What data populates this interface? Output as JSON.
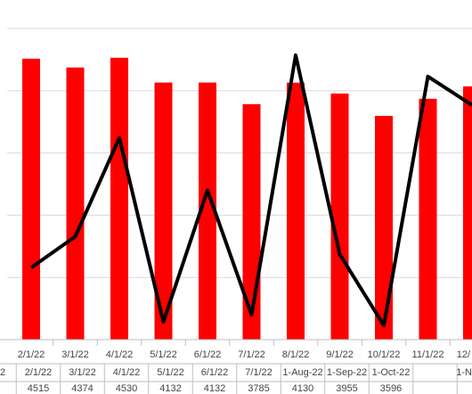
{
  "chart_data": {
    "type": "bar-line",
    "categories": [
      "2/1/22",
      "3/1/22",
      "4/1/22",
      "5/1/22",
      "6/1/22",
      "7/1/22",
      "8/1/22",
      "9/1/22",
      "10/1/22",
      "11/1/22",
      "12/"
    ],
    "series": [
      {
        "type": "bar",
        "color": "#ff0000",
        "values": [
          4515,
          4374,
          4530,
          4132,
          4132,
          3785,
          4130,
          3955,
          3596,
          3871,
          4071
        ]
      },
      {
        "type": "line",
        "color": "#000000",
        "values": [
          1157,
          1657,
          3243,
          286,
          2400,
          400,
          4571,
          1371,
          229,
          4229,
          3771
        ]
      }
    ],
    "ylim": [
      0,
      5000
    ],
    "yticks": [
      0,
      1000,
      2000,
      3000,
      4000,
      5000
    ],
    "grid": true,
    "table": {
      "partial": "2",
      "headers": [
        "2/1/22",
        "3/1/22",
        "4/1/22",
        "5/1/22",
        "6/1/22",
        "7/1/22",
        "1-Aug-22",
        "1-Sep-22",
        "1-Oct-22",
        "1-N"
      ],
      "values": [
        4515,
        4374,
        4530,
        4132,
        4132,
        3785,
        4130,
        3955,
        3596
      ]
    }
  }
}
